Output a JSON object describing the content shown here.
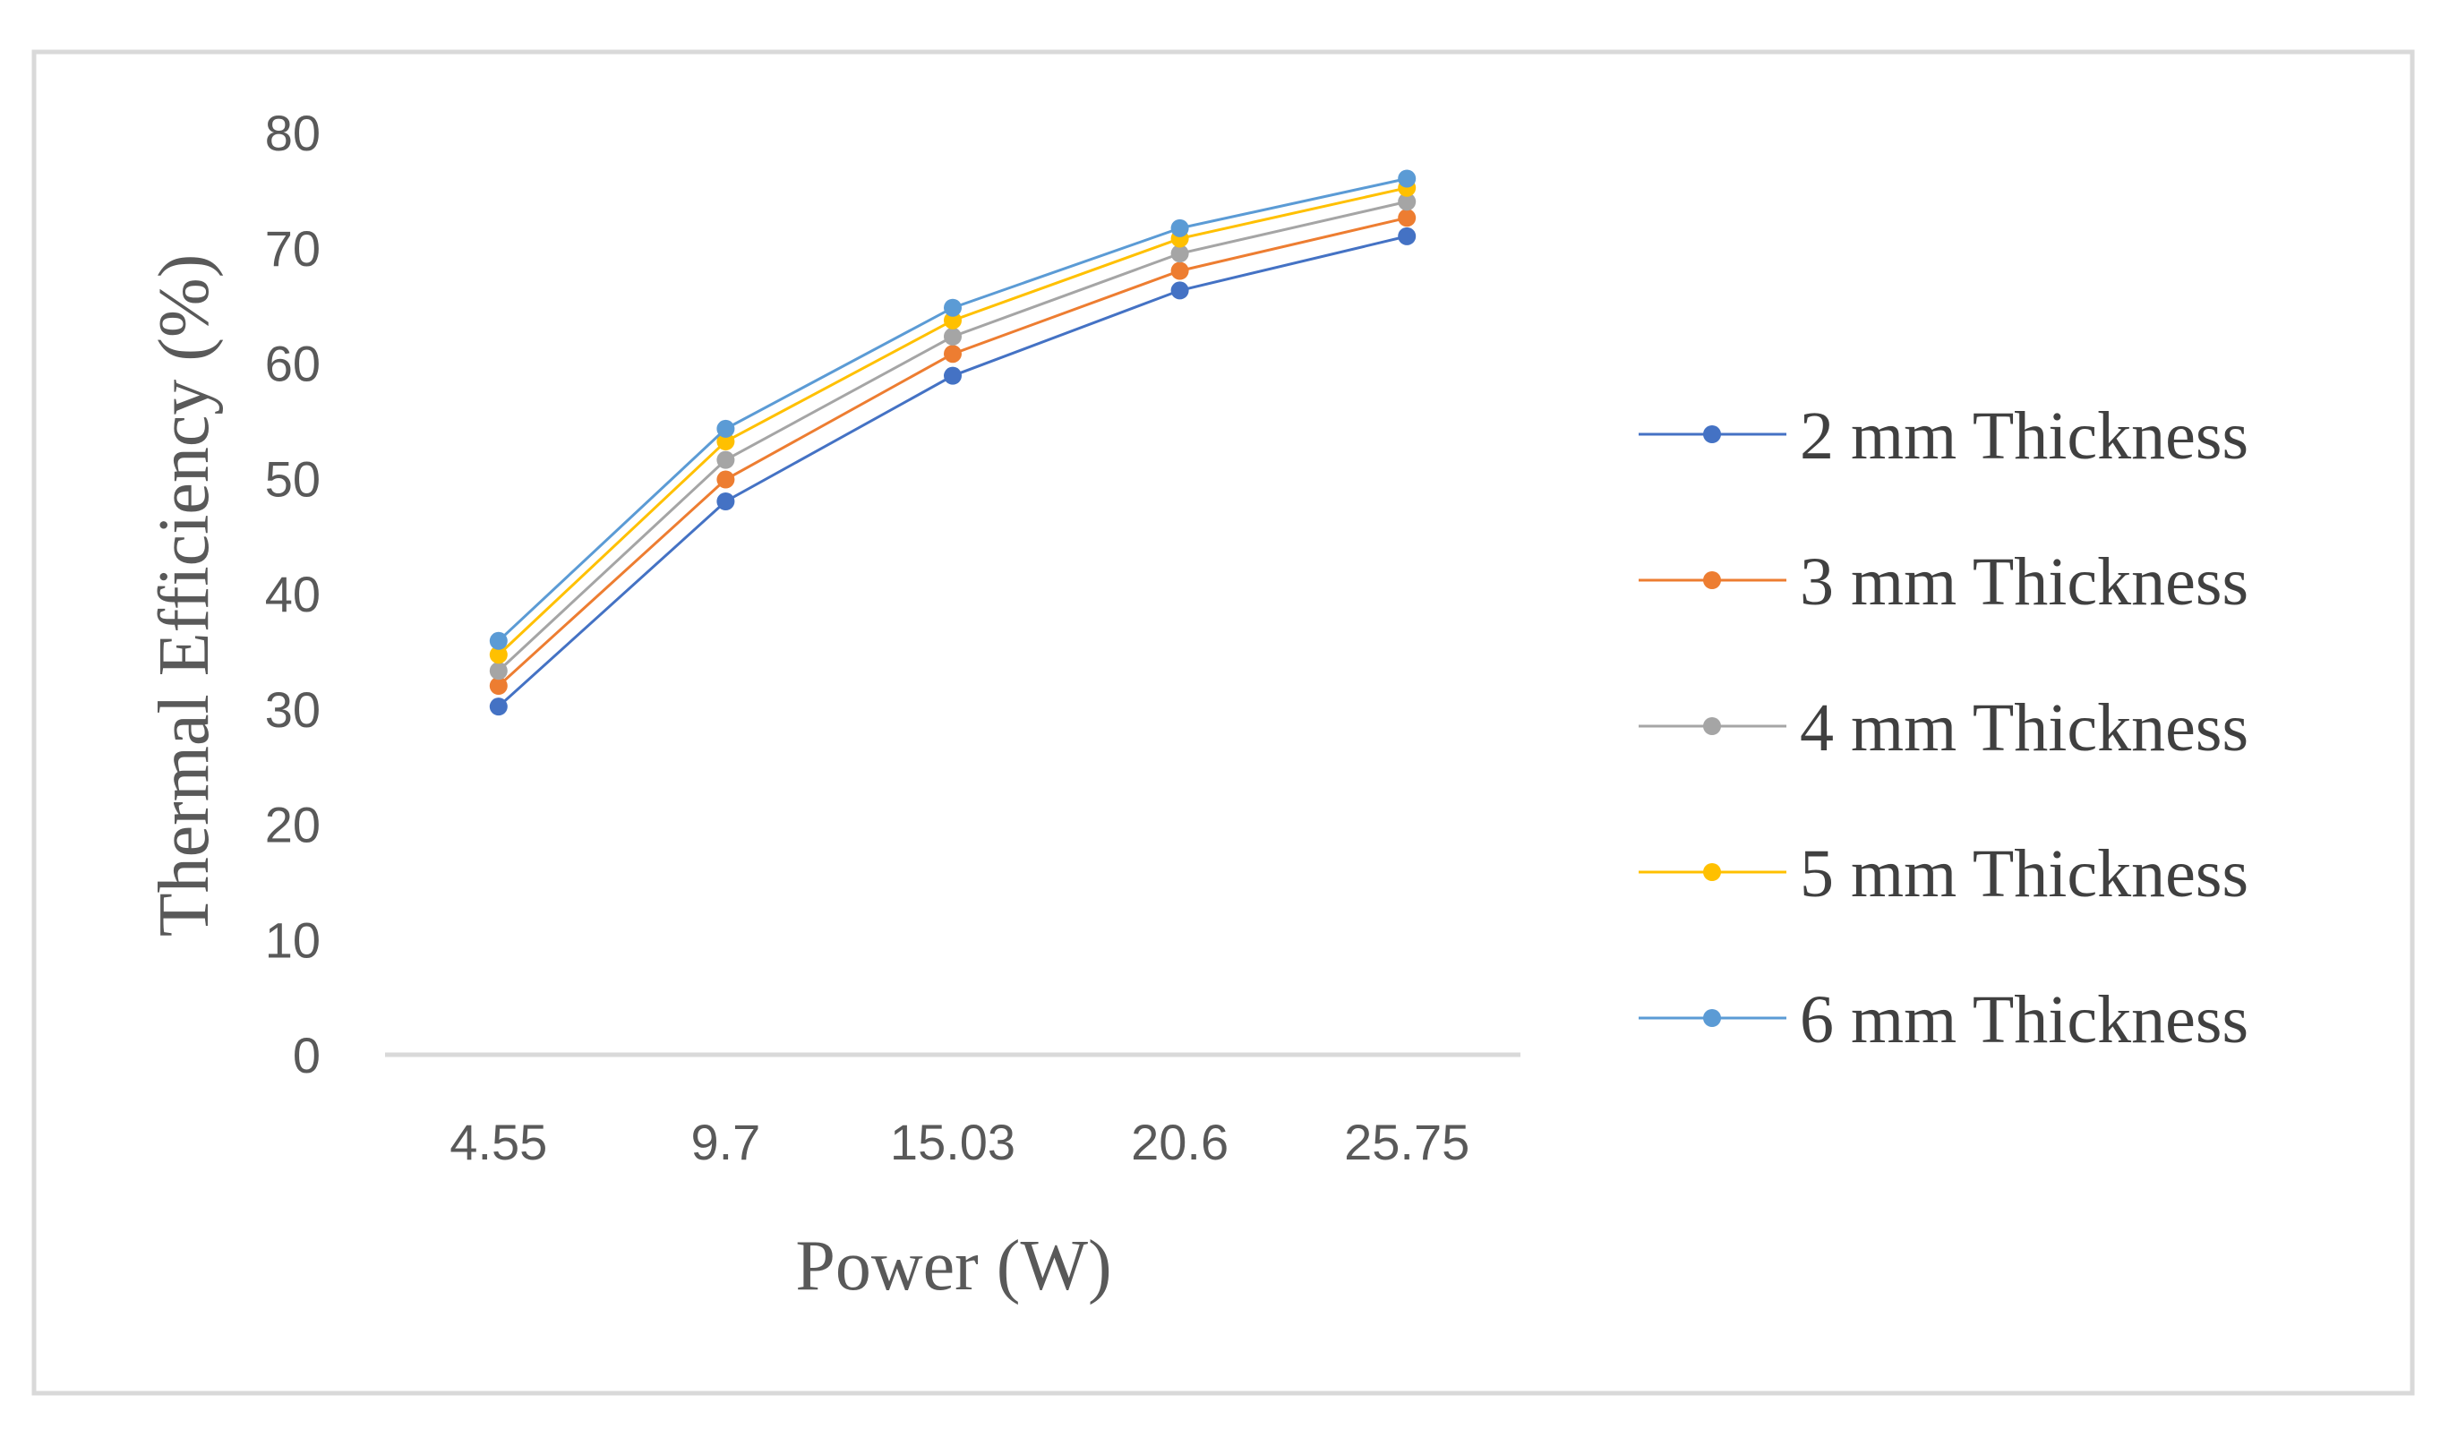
{
  "chart_data": {
    "type": "line",
    "title": "",
    "xlabel": "Power (W)",
    "ylabel": "Thermal Efficiency (%)",
    "categories": [
      "4.55",
      "9.7",
      "15.03",
      "20.6",
      "25.75"
    ],
    "ylim": [
      0,
      80
    ],
    "yticks": [
      "0",
      "10",
      "20",
      "30",
      "40",
      "50",
      "60",
      "70",
      "80"
    ],
    "grid": false,
    "legend_position": "right",
    "series": [
      {
        "name": "2 mm Thickness",
        "color": "#4472C4",
        "values": [
          30.2,
          48.0,
          58.9,
          66.3,
          71.0
        ]
      },
      {
        "name": "3 mm Thickness",
        "color": "#ED7D31",
        "values": [
          32.0,
          49.9,
          60.8,
          68.0,
          72.6
        ]
      },
      {
        "name": "4 mm Thickness",
        "color": "#A5A5A5",
        "values": [
          33.3,
          51.6,
          62.3,
          69.5,
          74.0
        ]
      },
      {
        "name": "5 mm Thickness",
        "color": "#FFC000",
        "values": [
          34.7,
          53.2,
          63.7,
          70.8,
          75.2
        ]
      },
      {
        "name": "6 mm Thickness",
        "color": "#5B9BD5",
        "values": [
          35.9,
          54.3,
          64.8,
          71.7,
          76.0
        ]
      }
    ]
  }
}
